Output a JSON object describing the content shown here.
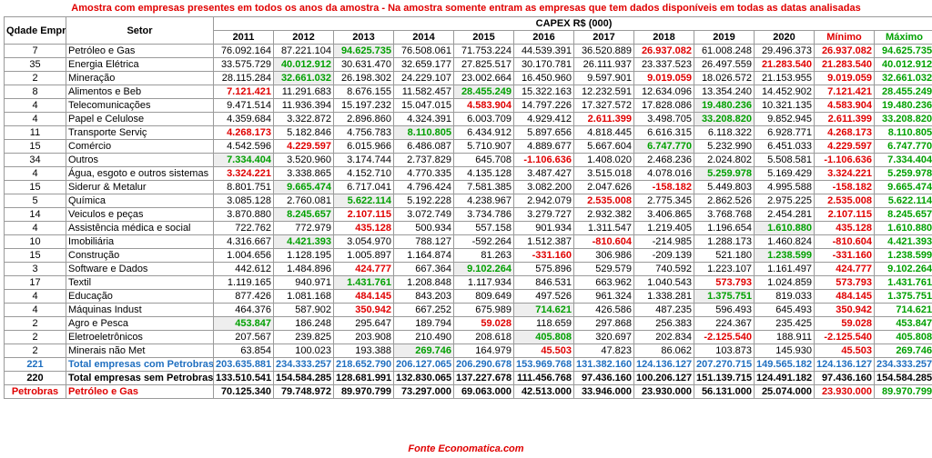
{
  "title": "Amostra com empresas presentes em todos os anos da amostra - Na amostra somente entram as empresas que tem dados disponíveis em todas as datas analisadas",
  "header": {
    "qty_label": "Qdade Empresas",
    "sector_label": "Setor",
    "group_label": "CAPEX R$ (000)",
    "years": [
      "2011",
      "2012",
      "2013",
      "2014",
      "2015",
      "2016",
      "2017",
      "2018",
      "2019",
      "2020"
    ],
    "min_label": "Mínimo",
    "max_label": "Máximo"
  },
  "rows": [
    {
      "qty": "7",
      "sector": "Petróleo e Gas",
      "values": [
        "76.092.164",
        "87.221.104",
        "94.625.735",
        "76.508.061",
        "71.753.224",
        "44.539.391",
        "36.520.889",
        "26.937.082",
        "61.008.248",
        "29.496.373"
      ],
      "min": "26.937.082",
      "max": "94.625.735"
    },
    {
      "qty": "35",
      "sector": "Energia Elétrica",
      "values": [
        "33.575.729",
        "40.012.912",
        "30.631.470",
        "32.659.177",
        "27.825.517",
        "30.170.781",
        "26.111.937",
        "23.337.523",
        "26.497.559",
        "21.283.540"
      ],
      "min": "21.283.540",
      "max": "40.012.912"
    },
    {
      "qty": "2",
      "sector": "Mineração",
      "values": [
        "28.115.284",
        "32.661.032",
        "26.198.302",
        "24.229.107",
        "23.002.664",
        "16.450.960",
        "9.597.901",
        "9.019.059",
        "18.026.572",
        "21.153.955"
      ],
      "min": "9.019.059",
      "max": "32.661.032"
    },
    {
      "qty": "8",
      "sector": "Alimentos e Beb",
      "values": [
        "7.121.421",
        "11.291.683",
        "8.676.155",
        "11.582.457",
        "28.455.249",
        "15.322.163",
        "12.232.591",
        "12.634.096",
        "13.354.240",
        "14.452.902"
      ],
      "min": "7.121.421",
      "max": "28.455.249"
    },
    {
      "qty": "4",
      "sector": "Telecomunicações",
      "values": [
        "9.471.514",
        "11.936.394",
        "15.197.232",
        "15.047.015",
        "4.583.904",
        "14.797.226",
        "17.327.572",
        "17.828.086",
        "19.480.236",
        "10.321.135"
      ],
      "min": "4.583.904",
      "max": "19.480.236"
    },
    {
      "qty": "4",
      "sector": "Papel e Celulose",
      "values": [
        "4.359.684",
        "3.322.872",
        "2.896.860",
        "4.324.391",
        "6.003.709",
        "4.929.412",
        "2.611.399",
        "3.498.705",
        "33.208.820",
        "9.852.945"
      ],
      "min": "2.611.399",
      "max": "33.208.820"
    },
    {
      "qty": "11",
      "sector": "Transporte Serviç",
      "values": [
        "4.268.173",
        "5.182.846",
        "4.756.783",
        "8.110.805",
        "6.434.912",
        "5.897.656",
        "4.818.445",
        "6.616.315",
        "6.118.322",
        "6.928.771"
      ],
      "min": "4.268.173",
      "max": "8.110.805"
    },
    {
      "qty": "15",
      "sector": "Comércio",
      "values": [
        "4.542.596",
        "4.229.597",
        "6.015.966",
        "6.486.087",
        "5.710.907",
        "4.889.677",
        "5.667.604",
        "6.747.770",
        "5.232.990",
        "6.451.033"
      ],
      "min": "4.229.597",
      "max": "6.747.770"
    },
    {
      "qty": "34",
      "sector": "Outros",
      "values": [
        "7.334.404",
        "3.520.960",
        "3.174.744",
        "2.737.829",
        "645.708",
        "-1.106.636",
        "1.408.020",
        "2.468.236",
        "2.024.802",
        "5.508.581"
      ],
      "min": "-1.106.636",
      "max": "7.334.404"
    },
    {
      "qty": "4",
      "sector": "Água, esgoto e outros sistemas",
      "values": [
        "3.324.221",
        "3.338.865",
        "4.152.710",
        "4.770.335",
        "4.135.128",
        "3.487.427",
        "3.515.018",
        "4.078.016",
        "5.259.978",
        "5.169.429"
      ],
      "min": "3.324.221",
      "max": "5.259.978"
    },
    {
      "qty": "15",
      "sector": "Siderur & Metalur",
      "values": [
        "8.801.751",
        "9.665.474",
        "6.717.041",
        "4.796.424",
        "7.581.385",
        "3.082.200",
        "2.047.626",
        "-158.182",
        "5.449.803",
        "4.995.588"
      ],
      "min": "-158.182",
      "max": "9.665.474"
    },
    {
      "qty": "5",
      "sector": "Química",
      "values": [
        "3.085.128",
        "2.760.081",
        "5.622.114",
        "5.192.228",
        "4.238.967",
        "2.942.079",
        "2.535.008",
        "2.775.345",
        "2.862.526",
        "2.975.225"
      ],
      "min": "2.535.008",
      "max": "5.622.114"
    },
    {
      "qty": "14",
      "sector": "Veiculos e peças",
      "values": [
        "3.870.880",
        "8.245.657",
        "2.107.115",
        "3.072.749",
        "3.734.786",
        "3.279.727",
        "2.932.382",
        "3.406.865",
        "3.768.768",
        "2.454.281"
      ],
      "min": "2.107.115",
      "max": "8.245.657"
    },
    {
      "qty": "4",
      "sector": "Assistência médica e social",
      "values": [
        "722.762",
        "772.979",
        "435.128",
        "500.934",
        "557.158",
        "901.934",
        "1.311.547",
        "1.219.405",
        "1.196.654",
        "1.610.880"
      ],
      "min": "435.128",
      "max": "1.610.880"
    },
    {
      "qty": "10",
      "sector": "Imobiliária",
      "values": [
        "4.316.667",
        "4.421.393",
        "3.054.970",
        "788.127",
        "-592.264",
        "1.512.387",
        "-810.604",
        "-214.985",
        "1.288.173",
        "1.460.824"
      ],
      "min": "-810.604",
      "max": "4.421.393"
    },
    {
      "qty": "15",
      "sector": "Construção",
      "values": [
        "1.004.656",
        "1.128.195",
        "1.005.897",
        "1.164.874",
        "81.263",
        "-331.160",
        "306.986",
        "-209.139",
        "521.180",
        "1.238.599"
      ],
      "min": "-331.160",
      "max": "1.238.599"
    },
    {
      "qty": "3",
      "sector": "Software e Dados",
      "values": [
        "442.612",
        "1.484.896",
        "424.777",
        "667.364",
        "9.102.264",
        "575.896",
        "529.579",
        "740.592",
        "1.223.107",
        "1.161.497"
      ],
      "min": "424.777",
      "max": "9.102.264"
    },
    {
      "qty": "17",
      "sector": "Textil",
      "values": [
        "1.119.165",
        "940.971",
        "1.431.761",
        "1.208.848",
        "1.117.934",
        "846.531",
        "663.962",
        "1.040.543",
        "573.793",
        "1.024.859"
      ],
      "min": "573.793",
      "max": "1.431.761"
    },
    {
      "qty": "4",
      "sector": "Educação",
      "values": [
        "877.426",
        "1.081.168",
        "484.145",
        "843.203",
        "809.649",
        "497.526",
        "961.324",
        "1.338.281",
        "1.375.751",
        "819.033"
      ],
      "min": "484.145",
      "max": "1.375.751"
    },
    {
      "qty": "4",
      "sector": "Máquinas Indust",
      "values": [
        "464.376",
        "587.902",
        "350.942",
        "667.252",
        "675.989",
        "714.621",
        "426.586",
        "487.235",
        "596.493",
        "645.493"
      ],
      "min": "350.942",
      "max": "714.621"
    },
    {
      "qty": "2",
      "sector": "Agro e Pesca",
      "values": [
        "453.847",
        "186.248",
        "295.647",
        "189.794",
        "59.028",
        "118.659",
        "297.868",
        "256.383",
        "224.367",
        "235.425"
      ],
      "min": "59.028",
      "max": "453.847"
    },
    {
      "qty": "2",
      "sector": "Eletroeletrônicos",
      "values": [
        "207.567",
        "239.825",
        "203.908",
        "210.490",
        "208.618",
        "405.808",
        "320.697",
        "202.834",
        "-2.125.540",
        "188.911"
      ],
      "min": "-2.125.540",
      "max": "405.808"
    },
    {
      "qty": "2",
      "sector": "Minerais não Met",
      "values": [
        "63.854",
        "100.023",
        "193.388",
        "269.746",
        "164.979",
        "45.503",
        "47.823",
        "86.062",
        "103.873",
        "145.930"
      ],
      "min": "45.503",
      "max": "269.746"
    }
  ],
  "totals": [
    {
      "qty": "221",
      "sector": "Total empresas com Petrobras",
      "values": [
        "203.635.881",
        "234.333.257",
        "218.652.790",
        "206.127.065",
        "206.290.678",
        "153.969.768",
        "131.382.160",
        "124.136.127",
        "207.270.715",
        "149.565.182"
      ],
      "min": "124.136.127",
      "max": "234.333.257"
    },
    {
      "qty": "220",
      "sector": "Total empresas sem Petrobras",
      "values": [
        "133.510.541",
        "154.584.285",
        "128.681.991",
        "132.830.065",
        "137.227.678",
        "111.456.768",
        "97.436.160",
        "100.206.127",
        "151.139.715",
        "124.491.182"
      ],
      "min": "97.436.160",
      "max": "154.584.285"
    },
    {
      "qty": "Petrobras",
      "sector": "Petróleo e Gas",
      "values": [
        "70.125.340",
        "79.748.972",
        "89.970.799",
        "73.297.000",
        "69.063.000",
        "42.513.000",
        "33.946.000",
        "23.930.000",
        "56.131.000",
        "25.074.000"
      ],
      "min": "23.930.000",
      "max": "89.970.799"
    }
  ],
  "footer": "Fonte Economatica.com",
  "colors": {
    "min_red": "#e00000",
    "max_green": "#00a000",
    "total_blue": "#1f6fc0",
    "highlight_fill": "#eeeeee"
  }
}
